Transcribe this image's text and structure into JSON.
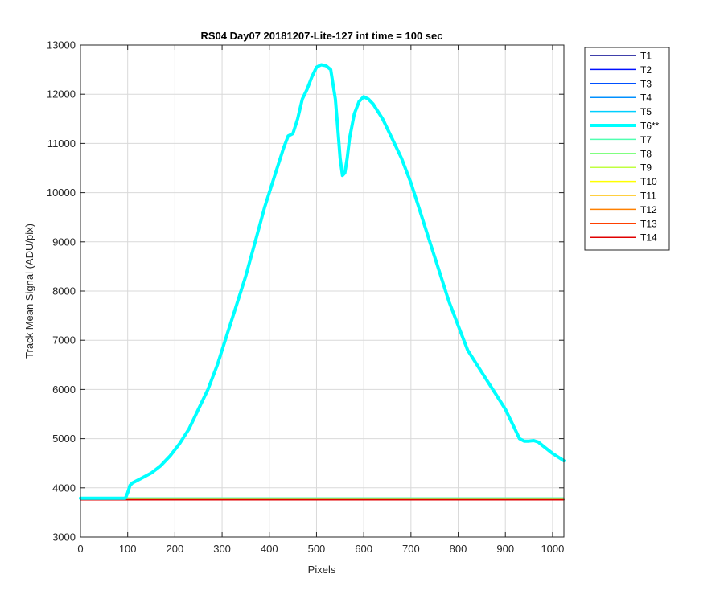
{
  "chart_data": {
    "type": "line",
    "title": "RS04 Day07 20181207-Lite-127 int time = 100 sec",
    "xlabel": "Pixels",
    "ylabel": "Track Mean Signal (ADU/pix)",
    "xlim": [
      0,
      1024
    ],
    "ylim": [
      3000,
      13000
    ],
    "grid": true,
    "legend_position": "outside-top-right",
    "x_ticks": [
      0,
      100,
      200,
      300,
      400,
      500,
      600,
      700,
      800,
      900,
      1000
    ],
    "y_ticks": [
      3000,
      4000,
      5000,
      6000,
      7000,
      8000,
      9000,
      10000,
      11000,
      12000,
      13000
    ],
    "x_tick_labels": [
      "0",
      "100",
      "200",
      "300",
      "400",
      "500",
      "600",
      "700",
      "800",
      "900",
      "1000"
    ],
    "y_tick_labels": [
      "3000",
      "4000",
      "5000",
      "6000",
      "7000",
      "8000",
      "9000",
      "10000",
      "11000",
      "12000",
      "13000"
    ],
    "series": [
      {
        "name": "T1",
        "color": "#00008f",
        "width": 1.5,
        "x": [
          0,
          1024
        ],
        "values": [
          3760,
          3760
        ]
      },
      {
        "name": "T2",
        "color": "#0010ff",
        "width": 1.5,
        "x": [
          0,
          1024
        ],
        "values": [
          3760,
          3760
        ]
      },
      {
        "name": "T3",
        "color": "#0050ff",
        "width": 1.5,
        "x": [
          0,
          1024
        ],
        "values": [
          3760,
          3760
        ]
      },
      {
        "name": "T4",
        "color": "#0090ff",
        "width": 1.5,
        "x": [
          0,
          1024
        ],
        "values": [
          3765,
          3765
        ]
      },
      {
        "name": "T5",
        "color": "#00cfff",
        "width": 1.5,
        "x": [
          0,
          1024
        ],
        "values": [
          3770,
          3770
        ]
      },
      {
        "name": "T6**",
        "color": "#00ffff",
        "width": 4,
        "x": [
          0,
          95,
          100,
          105,
          110,
          130,
          150,
          170,
          190,
          210,
          230,
          250,
          270,
          290,
          310,
          330,
          350,
          370,
          390,
          410,
          430,
          440,
          450,
          460,
          470,
          480,
          490,
          500,
          510,
          520,
          530,
          540,
          545,
          550,
          555,
          560,
          565,
          570,
          580,
          590,
          600,
          610,
          620,
          640,
          660,
          680,
          700,
          720,
          740,
          760,
          780,
          800,
          820,
          840,
          860,
          880,
          900,
          920,
          930,
          940,
          950,
          960,
          970,
          980,
          1000,
          1024
        ],
        "values": [
          3790,
          3790,
          3900,
          4050,
          4100,
          4200,
          4300,
          4450,
          4650,
          4900,
          5200,
          5600,
          6000,
          6500,
          7100,
          7700,
          8300,
          9000,
          9700,
          10300,
          10900,
          11150,
          11200,
          11500,
          11900,
          12100,
          12350,
          12550,
          12600,
          12580,
          12500,
          11900,
          11300,
          10700,
          10350,
          10400,
          10700,
          11100,
          11600,
          11850,
          11950,
          11900,
          11800,
          11500,
          11100,
          10700,
          10200,
          9600,
          9000,
          8400,
          7800,
          7300,
          6800,
          6500,
          6200,
          5900,
          5600,
          5200,
          5000,
          4950,
          4950,
          4960,
          4930,
          4850,
          4700,
          4550
        ]
      },
      {
        "name": "T7",
        "color": "#50ffb0",
        "width": 1.5,
        "x": [
          0,
          1024
        ],
        "values": [
          3795,
          3795
        ]
      },
      {
        "name": "T8",
        "color": "#80ff80",
        "width": 1.5,
        "x": [
          0,
          1024
        ],
        "values": [
          3780,
          3780
        ]
      },
      {
        "name": "T9",
        "color": "#c0ff40",
        "width": 1.5,
        "x": [
          0,
          1024
        ],
        "values": [
          3760,
          3760
        ]
      },
      {
        "name": "T10",
        "color": "#ffff00",
        "width": 1.5,
        "x": [
          0,
          1024
        ],
        "values": [
          3755,
          3755
        ]
      },
      {
        "name": "T11",
        "color": "#ffbf00",
        "width": 1.5,
        "x": [
          0,
          1024
        ],
        "values": [
          3755,
          3755
        ]
      },
      {
        "name": "T12",
        "color": "#ff8000",
        "width": 1.5,
        "x": [
          0,
          1024
        ],
        "values": [
          3760,
          3760
        ]
      },
      {
        "name": "T13",
        "color": "#ff4000",
        "width": 1.5,
        "x": [
          0,
          1024
        ],
        "values": [
          3760,
          3760
        ]
      },
      {
        "name": "T14",
        "color": "#e00000",
        "width": 1.5,
        "x": [
          0,
          1024
        ],
        "values": [
          3755,
          3755
        ]
      }
    ]
  }
}
